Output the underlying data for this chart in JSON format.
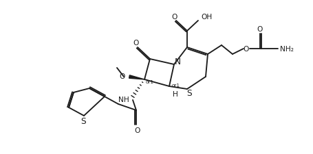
{
  "bg": "#ffffff",
  "lc": "#1c1c1c",
  "lw": 1.35,
  "fs": 7.2,
  "figsize": [
    4.56,
    2.26
  ],
  "dpi": 100,
  "xlim": [
    0,
    456
  ],
  "ylim": [
    0,
    226
  ]
}
